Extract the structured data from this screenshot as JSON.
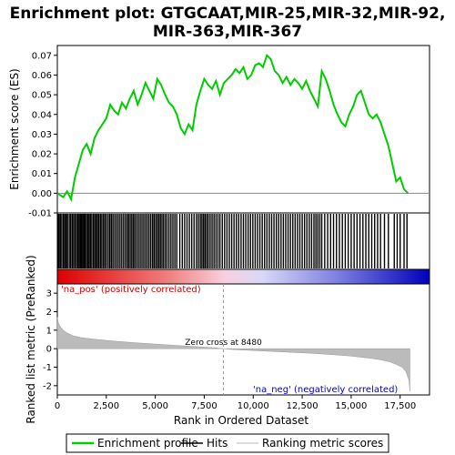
{
  "chart_data": {
    "type": "line",
    "title_line1": "Enrichment plot: GTGCAAT,MIR-25,MIR-32,MIR-92,",
    "title_line2": "MIR-363,MIR-367",
    "top_panel": {
      "ylabel": "Enrichment score (ES)",
      "ylim": [
        -0.01,
        0.075
      ],
      "yticks": [
        "-0.01",
        "0.00",
        "0.01",
        "0.02",
        "0.03",
        "0.04",
        "0.05",
        "0.06",
        "0.07"
      ],
      "ytick_values": [
        -0.01,
        0.0,
        0.01,
        0.02,
        0.03,
        0.04,
        0.05,
        0.06,
        0.07
      ],
      "xlim": [
        0,
        19000
      ],
      "series": [
        {
          "name": "Enrichment profile",
          "color": "#00cc00",
          "x": [
            0,
            300,
            500,
            700,
            900,
            1100,
            1300,
            1500,
            1700,
            1900,
            2100,
            2300,
            2500,
            2700,
            2900,
            3100,
            3300,
            3500,
            3700,
            3900,
            4100,
            4300,
            4500,
            4700,
            4900,
            5100,
            5300,
            5500,
            5700,
            5900,
            6100,
            6300,
            6500,
            6700,
            6900,
            7100,
            7300,
            7500,
            7700,
            7900,
            8100,
            8300,
            8500,
            8700,
            8900,
            9100,
            9300,
            9500,
            9700,
            9900,
            10100,
            10300,
            10500,
            10700,
            10900,
            11100,
            11300,
            11500,
            11700,
            11900,
            12100,
            12300,
            12500,
            12700,
            12900,
            13100,
            13300,
            13500,
            13700,
            13900,
            14100,
            14300,
            14500,
            14700,
            14900,
            15100,
            15300,
            15500,
            15700,
            15900,
            16100,
            16300,
            16500,
            16700,
            16900,
            17100,
            17300,
            17500,
            17700,
            17900
          ],
          "y": [
            0.0,
            -0.002,
            0.001,
            -0.003,
            0.008,
            0.015,
            0.022,
            0.025,
            0.02,
            0.028,
            0.032,
            0.035,
            0.038,
            0.045,
            0.042,
            0.04,
            0.046,
            0.043,
            0.048,
            0.052,
            0.045,
            0.05,
            0.056,
            0.052,
            0.048,
            0.058,
            0.055,
            0.05,
            0.046,
            0.044,
            0.04,
            0.033,
            0.03,
            0.035,
            0.032,
            0.045,
            0.052,
            0.058,
            0.055,
            0.053,
            0.057,
            0.05,
            0.056,
            0.058,
            0.06,
            0.063,
            0.061,
            0.064,
            0.058,
            0.06,
            0.065,
            0.066,
            0.064,
            0.07,
            0.068,
            0.062,
            0.06,
            0.056,
            0.059,
            0.055,
            0.058,
            0.056,
            0.053,
            0.057,
            0.052,
            0.048,
            0.044,
            0.062,
            0.058,
            0.052,
            0.045,
            0.04,
            0.036,
            0.034,
            0.04,
            0.044,
            0.05,
            0.052,
            0.046,
            0.04,
            0.038,
            0.04,
            0.036,
            0.03,
            0.024,
            0.015,
            0.006,
            0.008,
            0.002,
            0.0
          ]
        }
      ]
    },
    "hits_panel": {
      "hit_positions": [
        40,
        95,
        160,
        230,
        310,
        380,
        450,
        520,
        610,
        680,
        760,
        830,
        905,
        980,
        1050,
        1110,
        1175,
        1240,
        1300,
        1360,
        1420,
        1490,
        1560,
        1620,
        1690,
        1760,
        1840,
        1910,
        1980,
        2050,
        2120,
        2200,
        2270,
        2350,
        2430,
        2510,
        2600,
        2680,
        2760,
        2840,
        2930,
        3020,
        3110,
        3200,
        3290,
        3380,
        3470,
        3560,
        3640,
        3720,
        3800,
        3880,
        3960,
        4050,
        4140,
        4230,
        4320,
        4410,
        4500,
        4590,
        4680,
        4770,
        4860,
        4940,
        5020,
        5100,
        5180,
        5260,
        5340,
        5420,
        5510,
        5600,
        5700,
        5800,
        5900,
        6000,
        6100,
        6250,
        6380,
        6500,
        6620,
        6740,
        6860,
        6980,
        7100,
        7200,
        7300,
        7380,
        7460,
        7540,
        7620,
        7700,
        7800,
        7900,
        8000,
        8100,
        8200,
        8300,
        8420,
        8540,
        8660,
        8780,
        8900,
        9020,
        9140,
        9260,
        9380,
        9500,
        9620,
        9740,
        9860,
        9980,
        10100,
        10220,
        10340,
        10460,
        10580,
        10700,
        10820,
        10940,
        11060,
        11180,
        11300,
        11420,
        11540,
        11660,
        11780,
        11900,
        12020,
        12140,
        12260,
        12380,
        12500,
        12620,
        12740,
        12860,
        12980,
        13100,
        13200,
        13300,
        13400,
        13500,
        13650,
        13800,
        13950,
        14100,
        14250,
        14400,
        14550,
        14700,
        14850,
        15000,
        15150,
        15300,
        15450,
        15600,
        15750,
        15900,
        16050,
        16200,
        16350,
        16500,
        16700,
        16900,
        17200,
        17350,
        17500,
        17700,
        17850
      ]
    },
    "bottom_panel": {
      "ylabel": "Ranked list metric (PreRanked)",
      "xlabel": "Rank in Ordered Dataset",
      "ylim": [
        -2.5,
        3.5
      ],
      "yticks": [
        "-2",
        "-1",
        "0",
        "1",
        "2",
        "3"
      ],
      "ytick_values": [
        -2,
        -1,
        0,
        1,
        2,
        3
      ],
      "xticks": [
        "0",
        "2,500",
        "5,000",
        "7,500",
        "10,000",
        "12,500",
        "15,000",
        "17,500"
      ],
      "xtick_values": [
        0,
        2500,
        5000,
        7500,
        10000,
        12500,
        15000,
        17500
      ],
      "metric_x": [
        0,
        50,
        150,
        300,
        500,
        800,
        1200,
        2000,
        3000,
        4000,
        5000,
        6000,
        7000,
        8000,
        8480,
        9000,
        10000,
        11000,
        12000,
        13000,
        14000,
        15000,
        16000,
        16500,
        17000,
        17300,
        17600,
        17800,
        17950,
        18000
      ],
      "metric_y": [
        1.7,
        1.4,
        1.2,
        1.0,
        0.85,
        0.7,
        0.6,
        0.5,
        0.4,
        0.32,
        0.25,
        0.18,
        0.12,
        0.05,
        0.0,
        -0.05,
        -0.1,
        -0.15,
        -0.2,
        -0.25,
        -0.32,
        -0.4,
        -0.52,
        -0.6,
        -0.72,
        -0.85,
        -1.0,
        -1.25,
        -1.7,
        -2.3
      ],
      "zero_cross_label": "Zero cross at 8480",
      "zero_cross_x": 8480,
      "pos_label": "'na_pos' (positively correlated)",
      "neg_label": "'na_neg' (negatively correlated)"
    },
    "legend": {
      "placement": "bottom",
      "items": [
        {
          "name": "Enrichment profile",
          "color": "#00cc00"
        },
        {
          "name": "Hits",
          "color": "#000000"
        },
        {
          "name": "Ranking metric scores",
          "color": "#bbbbbb"
        }
      ]
    }
  }
}
